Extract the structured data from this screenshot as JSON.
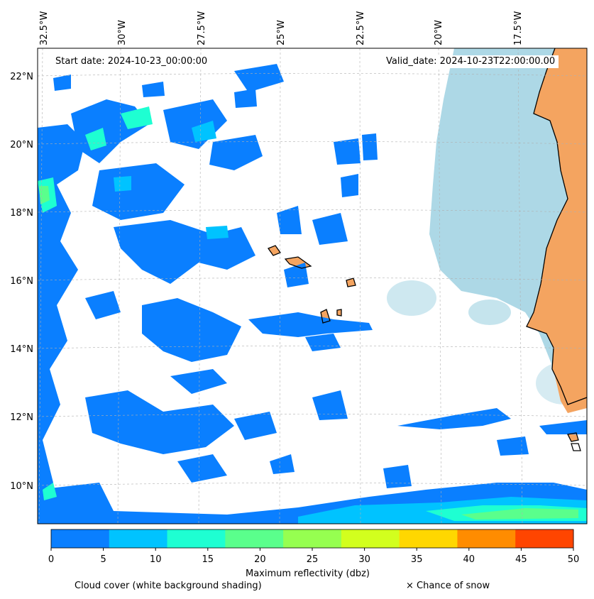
{
  "header": {
    "start_date": "Start date: 2024-10-23_00:00:00",
    "valid_date": "Valid_date: 2024-10-23T22:00:00.00"
  },
  "map": {
    "lon_labels": [
      "32.5°W",
      "30°W",
      "27.5°W",
      "25°W",
      "22.5°W",
      "20°W",
      "17.5°W"
    ],
    "lat_labels": [
      "22°N",
      "20°N",
      "18°N",
      "16°N",
      "14°N",
      "12°N",
      "10°N"
    ],
    "colors": {
      "land": "#F4A460",
      "cloud": "#ADD8E6",
      "coastline": "#000000"
    }
  },
  "colorbar": {
    "ticks": [
      "0",
      "5",
      "10",
      "15",
      "20",
      "25",
      "30",
      "35",
      "40",
      "45",
      "50"
    ],
    "colors": [
      "#0A7FFF",
      "#00C3FF",
      "#1EFFD2",
      "#5AFF8C",
      "#96FF50",
      "#D2FF1E",
      "#FFD700",
      "#FF8C00",
      "#FF4500"
    ],
    "label": "Maximum reflectivity (dbz)"
  },
  "legend": {
    "cloud_cover": "Cloud cover (white background shading)",
    "snow": "× Chance of snow"
  }
}
